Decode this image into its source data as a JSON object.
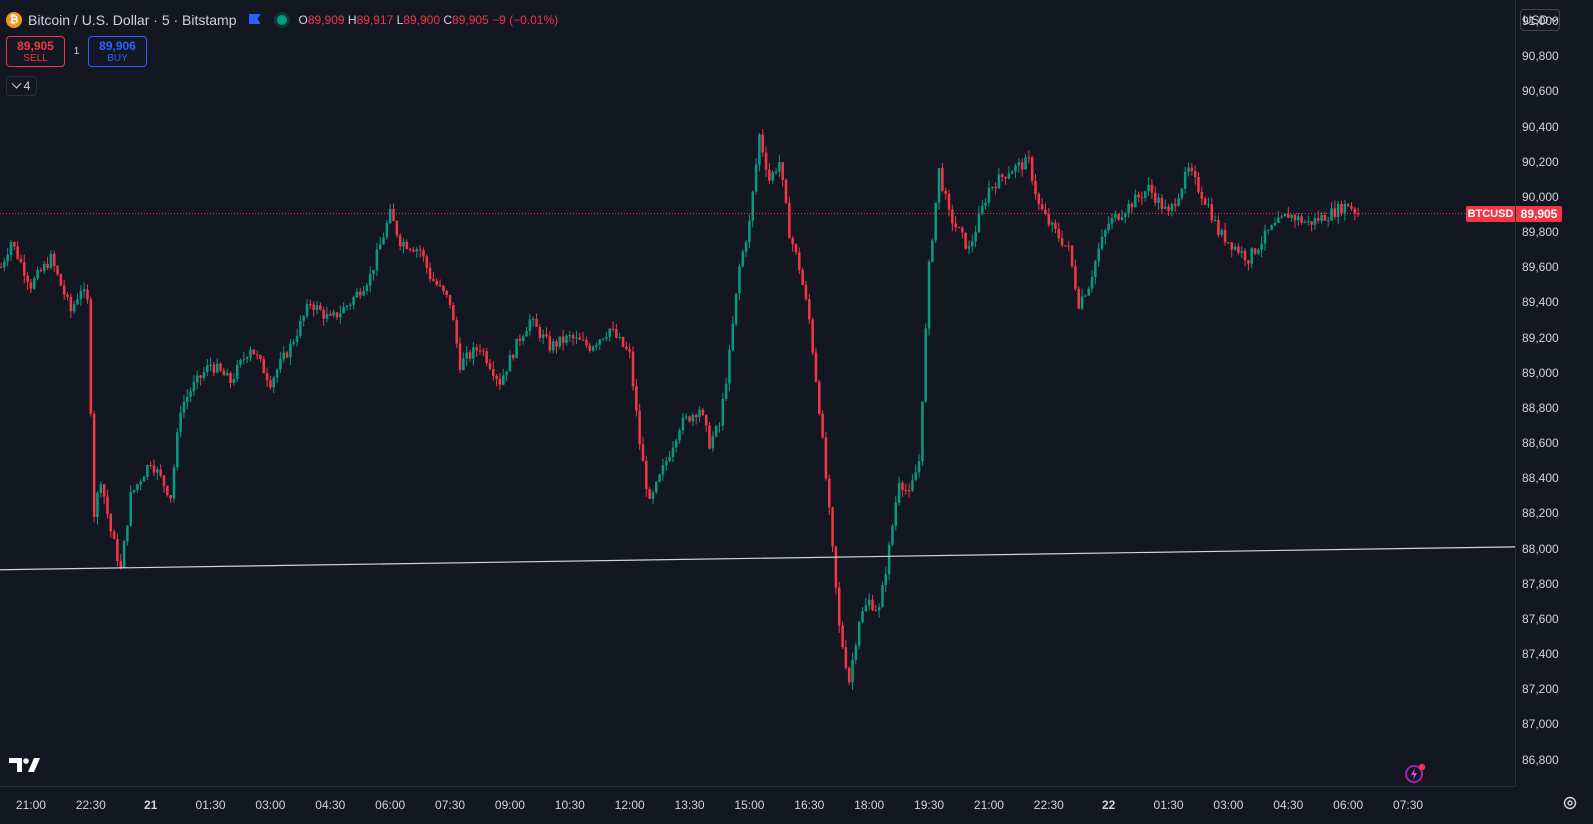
{
  "legend": {
    "icon_letter": "₿",
    "symbol": "Bitcoin / U.S. Dollar · 5 · Bitstamp",
    "o_key": "O",
    "o": "89,909",
    "h_key": "H",
    "h": "89,917",
    "l_key": "L",
    "l": "89,900",
    "c_key": "C",
    "c": "89,905",
    "change": "−9 (−0.01%)"
  },
  "trade": {
    "sell_price": "89,905",
    "sell_label": "SELL",
    "buy_price": "89,906",
    "buy_label": "BUY",
    "spread": "1"
  },
  "indicators_collapse": {
    "count": "4"
  },
  "currency": "USD",
  "price_marker": {
    "symbol": "BTCUSD",
    "value": "89,905"
  },
  "colors": {
    "up": "#089981",
    "down": "#f23645",
    "background": "#131722",
    "trendline": "#d1d4dc"
  },
  "icons": [
    "bitcoin-icon",
    "flag-icon",
    "status-dot-icon",
    "chevron-down-icon",
    "tradingview-logo",
    "spark-icon",
    "settings-icon"
  ],
  "chart_data": {
    "type": "candlestick",
    "title": "",
    "ylim": [
      86650,
      91120
    ],
    "y_ticks": [
      "91,000",
      "90,800",
      "90,600",
      "90,400",
      "90,200",
      "90,000",
      "89,800",
      "89,600",
      "89,400",
      "89,200",
      "89,000",
      "88,800",
      "88,600",
      "88,400",
      "88,200",
      "88,000",
      "87,800",
      "87,600",
      "87,400",
      "87,200",
      "87,000",
      "86,800"
    ],
    "y_tick_values": [
      91000,
      90800,
      90600,
      90400,
      90200,
      90000,
      89800,
      89600,
      89400,
      89200,
      89000,
      88800,
      88600,
      88400,
      88200,
      88000,
      87800,
      87600,
      87400,
      87200,
      87000,
      86800
    ],
    "x_ticks": [
      "21:00",
      "22:30",
      "21",
      "01:30",
      "03:00",
      "04:30",
      "06:00",
      "07:30",
      "09:00",
      "10:30",
      "12:00",
      "13:30",
      "15:00",
      "16:30",
      "18:00",
      "19:30",
      "21:00",
      "22:30",
      "22",
      "01:30",
      "03:00",
      "04:30",
      "06:00",
      "07:30"
    ],
    "x_tick_day": [
      false,
      false,
      true,
      false,
      false,
      false,
      false,
      false,
      false,
      false,
      false,
      false,
      false,
      false,
      false,
      false,
      false,
      false,
      true,
      false,
      false,
      false,
      false,
      false
    ],
    "x_range": [
      "20 20:15",
      "22 08:00"
    ],
    "last_close": 89905,
    "trendline": {
      "start": [
        "20 20:15",
        87880
      ],
      "end": [
        "22 08:00",
        88010
      ]
    },
    "close_path": [
      [
        "20 20:15",
        89600
      ],
      [
        "20 20:30",
        89750
      ],
      [
        "20 21:00",
        89500
      ],
      [
        "20 21:30",
        89650
      ],
      [
        "20 22:00",
        89350
      ],
      [
        "20 22:15",
        89480
      ],
      [
        "20 22:25",
        89400
      ],
      [
        "20 22:35",
        88200
      ],
      [
        "20 22:45",
        88400
      ],
      [
        "20 23:00",
        88100
      ],
      [
        "20 23:15",
        87880
      ],
      [
        "20 23:30",
        88300
      ],
      [
        "20 23:45",
        88400
      ],
      [
        "21 00:00",
        88500
      ],
      [
        "21 00:30",
        88300
      ],
      [
        "21 00:45",
        88800
      ],
      [
        "21 01:00",
        88900
      ],
      [
        "21 01:30",
        89050
      ],
      [
        "21 02:00",
        88950
      ],
      [
        "21 02:30",
        89150
      ],
      [
        "21 03:00",
        88950
      ],
      [
        "21 03:30",
        89150
      ],
      [
        "21 04:00",
        89400
      ],
      [
        "21 04:30",
        89300
      ],
      [
        "21 05:00",
        89400
      ],
      [
        "21 05:30",
        89550
      ],
      [
        "21 06:00",
        89900
      ],
      [
        "21 06:15",
        89750
      ],
      [
        "21 06:45",
        89700
      ],
      [
        "21 07:00",
        89550
      ],
      [
        "21 07:30",
        89400
      ],
      [
        "21 07:45",
        89050
      ],
      [
        "21 08:15",
        89150
      ],
      [
        "21 08:45",
        88950
      ],
      [
        "21 09:15",
        89200
      ],
      [
        "21 09:30",
        89300
      ],
      [
        "21 10:00",
        89150
      ],
      [
        "21 10:30",
        89200
      ],
      [
        "21 11:00",
        89150
      ],
      [
        "21 11:30",
        89250
      ],
      [
        "21 12:00",
        89100
      ],
      [
        "21 12:15",
        88600
      ],
      [
        "21 12:30",
        88250
      ],
      [
        "21 12:45",
        88400
      ],
      [
        "21 13:15",
        88700
      ],
      [
        "21 13:45",
        88800
      ],
      [
        "21 14:00",
        88600
      ],
      [
        "21 14:15",
        88700
      ],
      [
        "21 14:30",
        89100
      ],
      [
        "21 14:45",
        89600
      ],
      [
        "21 15:00",
        89850
      ],
      [
        "21 15:15",
        90350
      ],
      [
        "21 15:30",
        90100
      ],
      [
        "21 15:45",
        90200
      ],
      [
        "21 16:00",
        89800
      ],
      [
        "21 16:15",
        89600
      ],
      [
        "21 16:30",
        89300
      ],
      [
        "21 16:45",
        88800
      ],
      [
        "21 17:00",
        88200
      ],
      [
        "21 17:15",
        87550
      ],
      [
        "21 17:30",
        87250
      ],
      [
        "21 17:45",
        87600
      ],
      [
        "21 18:00",
        87700
      ],
      [
        "21 18:15",
        87650
      ],
      [
        "21 18:30",
        88000
      ],
      [
        "21 18:45",
        88400
      ],
      [
        "21 19:00",
        88300
      ],
      [
        "21 19:15",
        88500
      ],
      [
        "21 19:30",
        89600
      ],
      [
        "21 19:45",
        90150
      ],
      [
        "21 20:00",
        89900
      ],
      [
        "21 20:30",
        89700
      ],
      [
        "21 21:00",
        90050
      ],
      [
        "21 21:30",
        90150
      ],
      [
        "21 22:00",
        90200
      ],
      [
        "21 22:15",
        89950
      ],
      [
        "21 22:30",
        89850
      ],
      [
        "21 23:00",
        89700
      ],
      [
        "21 23:15",
        89400
      ],
      [
        "21 23:30",
        89500
      ],
      [
        "21 23:45",
        89700
      ],
      [
        "22 00:00",
        89850
      ],
      [
        "22 00:30",
        89950
      ],
      [
        "22 01:00",
        90050
      ],
      [
        "22 01:30",
        89900
      ],
      [
        "22 02:00",
        90150
      ],
      [
        "22 02:30",
        89950
      ],
      [
        "22 02:45",
        89800
      ],
      [
        "22 03:15",
        89700
      ],
      [
        "22 03:30",
        89650
      ],
      [
        "22 04:00",
        89800
      ],
      [
        "22 04:30",
        89900
      ],
      [
        "22 05:00",
        89850
      ],
      [
        "22 05:30",
        89900
      ],
      [
        "22 06:00",
        89960
      ],
      [
        "22 06:15",
        89905
      ]
    ]
  }
}
